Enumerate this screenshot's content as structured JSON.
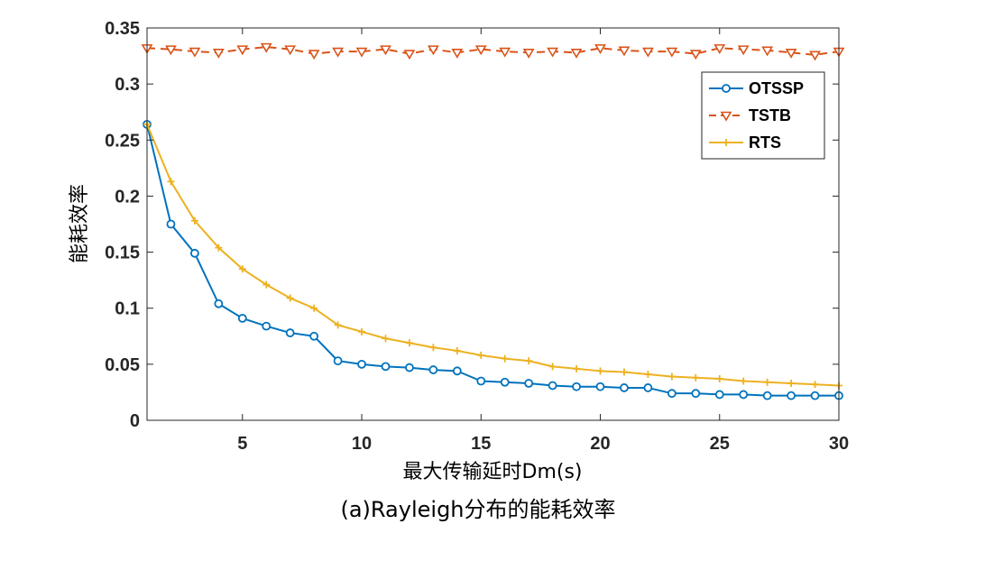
{
  "chart_data": {
    "type": "line",
    "title": "",
    "caption": "(a)Rayleigh分布的能耗效率",
    "xlabel": "最大传输延时Dm(s)",
    "ylabel": "能耗效率",
    "xlim": [
      1,
      30
    ],
    "ylim": [
      0,
      0.35
    ],
    "xticks": [
      5,
      10,
      15,
      20,
      25,
      30
    ],
    "yticks": [
      0,
      0.05,
      0.1,
      0.15,
      0.2,
      0.25,
      0.3,
      0.35
    ],
    "ytick_labels": [
      "0",
      "0.05",
      "0.1",
      "0.15",
      "0.2",
      "0.25",
      "0.3",
      "0.35"
    ],
    "grid": false,
    "legend_position": "top-right",
    "x": [
      1,
      2,
      3,
      4,
      5,
      6,
      7,
      8,
      9,
      10,
      11,
      12,
      13,
      14,
      15,
      16,
      17,
      18,
      19,
      20,
      21,
      22,
      23,
      24,
      25,
      26,
      27,
      28,
      29,
      30
    ],
    "series": [
      {
        "name": "OTSSP",
        "color": "#0072bd",
        "marker": "circle",
        "dash": "solid",
        "values": [
          0.264,
          0.175,
          0.149,
          0.104,
          0.091,
          0.084,
          0.078,
          0.075,
          0.053,
          0.05,
          0.048,
          0.047,
          0.045,
          0.044,
          0.035,
          0.034,
          0.033,
          0.031,
          0.03,
          0.03,
          0.029,
          0.029,
          0.024,
          0.024,
          0.023,
          0.023,
          0.022,
          0.022,
          0.022,
          0.022
        ]
      },
      {
        "name": "TSTB",
        "color": "#d95319",
        "marker": "triangle-down",
        "dash": "dashed",
        "values": [
          0.332,
          0.331,
          0.329,
          0.328,
          0.331,
          0.333,
          0.331,
          0.327,
          0.329,
          0.329,
          0.331,
          0.327,
          0.331,
          0.328,
          0.331,
          0.329,
          0.328,
          0.329,
          0.328,
          0.332,
          0.33,
          0.329,
          0.329,
          0.327,
          0.332,
          0.331,
          0.33,
          0.328,
          0.326,
          0.329
        ]
      },
      {
        "name": "RTS",
        "color": "#edb120",
        "marker": "plus",
        "dash": "solid",
        "values": [
          0.264,
          0.213,
          0.178,
          0.154,
          0.135,
          0.121,
          0.109,
          0.1,
          0.085,
          0.079,
          0.073,
          0.069,
          0.065,
          0.062,
          0.058,
          0.055,
          0.053,
          0.048,
          0.046,
          0.044,
          0.043,
          0.041,
          0.039,
          0.038,
          0.037,
          0.035,
          0.034,
          0.033,
          0.032,
          0.031
        ]
      }
    ]
  }
}
